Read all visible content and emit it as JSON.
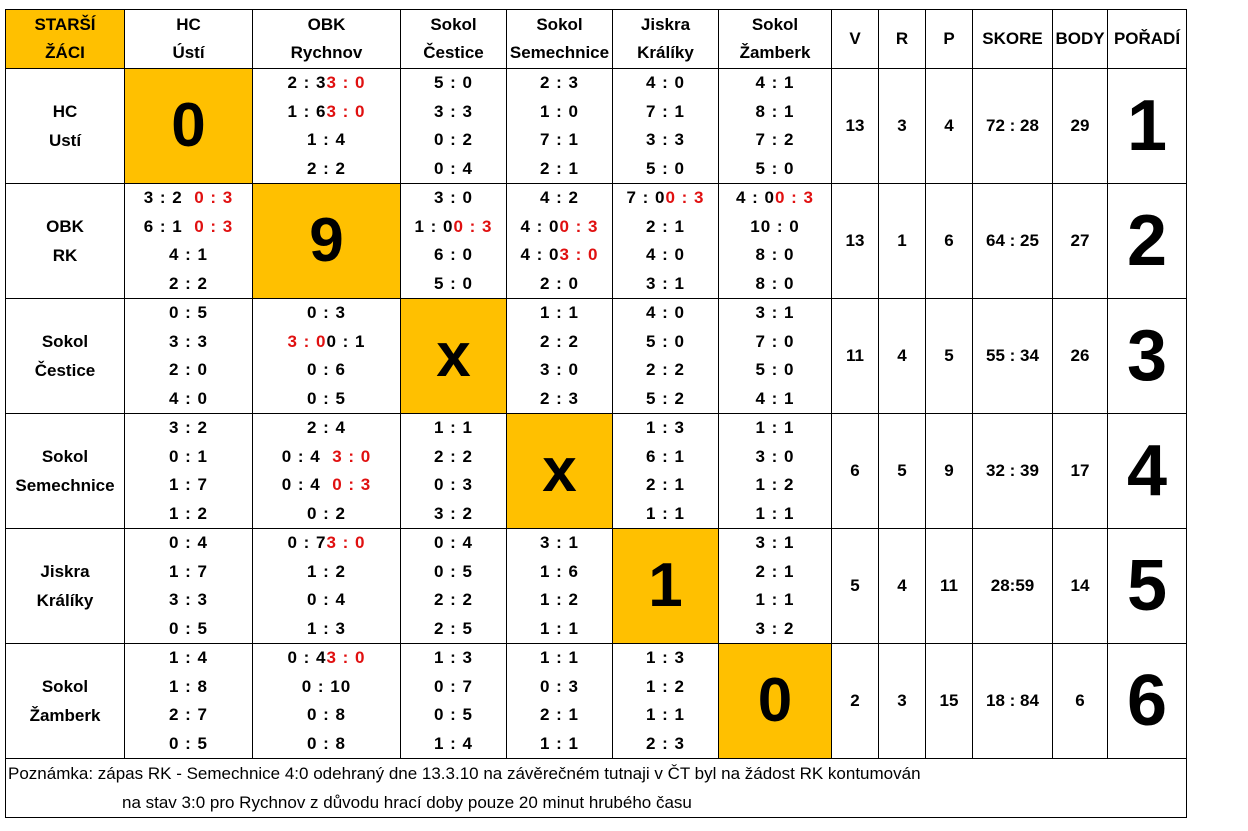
{
  "corner_label": [
    "STARŠÍ",
    "ŽÁCI"
  ],
  "team_headers": [
    [
      "HC",
      "Ústí"
    ],
    [
      "OBK",
      "Rychnov"
    ],
    [
      "Sokol",
      "Čestice"
    ],
    [
      "Sokol",
      "Semechnice"
    ],
    [
      "Jiskra",
      "Králíky"
    ],
    [
      "Sokol",
      "Žamberk"
    ]
  ],
  "stat_headers": [
    "V",
    "R",
    "P",
    "SKORE",
    "BODY",
    "POŘADÍ"
  ],
  "rows": [
    {
      "name": [
        "HC",
        "Ustí"
      ],
      "cells": [
        {
          "diag": "0"
        },
        [
          [
            "2 : 3",
            "3 : 0"
          ],
          [
            "1 : 6",
            "3 : 0"
          ],
          [
            "1 : 4"
          ],
          [
            "2 : 2"
          ]
        ],
        [
          [
            "5 : 0"
          ],
          [
            "3 : 3"
          ],
          [
            "0 : 2"
          ],
          [
            "0 : 4"
          ]
        ],
        [
          [
            "2 : 3"
          ],
          [
            "1 : 0"
          ],
          [
            "7 : 1"
          ],
          [
            "2 : 1"
          ]
        ],
        [
          [
            "4 : 0"
          ],
          [
            "7 : 1"
          ],
          [
            "3 : 3"
          ],
          [
            "5 : 0"
          ]
        ],
        [
          [
            "4 : 1"
          ],
          [
            "8 : 1"
          ],
          [
            "7 : 2"
          ],
          [
            "5 : 0"
          ]
        ]
      ],
      "v": "13",
      "r": "3",
      "p": "4",
      "skore": "72 : 28",
      "body": "29",
      "rank": "1"
    },
    {
      "name": [
        "OBK",
        "RK"
      ],
      "cells": [
        [
          [
            "3 : 2",
            "0 : 3"
          ],
          [
            "6 : 1",
            "0 : 3"
          ],
          [
            "4 : 1"
          ],
          [
            "2 : 2"
          ]
        ],
        {
          "diag": "9"
        },
        [
          [
            "3 : 0"
          ],
          [
            "1 : 0",
            "0 : 3"
          ],
          [
            "6 : 0"
          ],
          [
            "5 : 0"
          ]
        ],
        [
          [
            "4 : 2"
          ],
          [
            "4 : 0",
            "0 : 3"
          ],
          [
            "4 : 0",
            "3 : 0"
          ],
          [
            "2 : 0"
          ]
        ],
        [
          [
            "7 : 0",
            "0 : 3"
          ],
          [
            "2 : 1"
          ],
          [
            "4 : 0"
          ],
          [
            "3 : 1"
          ]
        ],
        [
          [
            "4 : 0",
            "0 : 3"
          ],
          [
            "10 : 0"
          ],
          [
            "8 : 0"
          ],
          [
            "8 : 0"
          ]
        ]
      ],
      "v": "13",
      "r": "1",
      "p": "6",
      "skore": "64 : 25",
      "body": "27",
      "rank": "2"
    },
    {
      "name": [
        "Sokol",
        "Čestice"
      ],
      "cells": [
        [
          [
            "0 : 5"
          ],
          [
            "3 : 3"
          ],
          [
            "2 : 0"
          ],
          [
            "4 : 0"
          ]
        ],
        [
          [
            "0 : 3"
          ],
          [
            "",
            "3 : 0",
            "0 : 1"
          ],
          [
            "0 : 6"
          ],
          [
            "0 : 5"
          ]
        ],
        {
          "diag": "x"
        },
        [
          [
            "1 : 1"
          ],
          [
            "2 : 2"
          ],
          [
            "3 : 0"
          ],
          [
            "2 : 3"
          ]
        ],
        [
          [
            "4 : 0"
          ],
          [
            "5 : 0"
          ],
          [
            "2 : 2"
          ],
          [
            "5 : 2"
          ]
        ],
        [
          [
            "3 : 1"
          ],
          [
            "7 : 0"
          ],
          [
            "5 : 0"
          ],
          [
            "4 : 1"
          ]
        ]
      ],
      "v": "11",
      "r": "4",
      "p": "5",
      "skore": "55 : 34",
      "body": "26",
      "rank": "3"
    },
    {
      "name": [
        "Sokol",
        "Semechnice"
      ],
      "cells": [
        [
          [
            "3 : 2"
          ],
          [
            "0 : 1"
          ],
          [
            "1 : 7"
          ],
          [
            "1 : 2"
          ]
        ],
        [
          [
            "2 : 4"
          ],
          [
            "0 : 4",
            "3 : 0"
          ],
          [
            "0 : 4",
            "0 : 3"
          ],
          [
            "0 : 2"
          ]
        ],
        [
          [
            "1 : 1"
          ],
          [
            "2 : 2"
          ],
          [
            "0 : 3"
          ],
          [
            "3 : 2"
          ]
        ],
        {
          "diag": "x"
        },
        [
          [
            "1 : 3"
          ],
          [
            "6 : 1"
          ],
          [
            "2 : 1"
          ],
          [
            "1 : 1"
          ]
        ],
        [
          [
            "1 : 1"
          ],
          [
            "3 : 0"
          ],
          [
            "1 : 2"
          ],
          [
            "1 : 1"
          ]
        ]
      ],
      "v": "6",
      "r": "5",
      "p": "9",
      "skore": "32 : 39",
      "body": "17",
      "rank": "4"
    },
    {
      "name": [
        "Jiskra",
        "Králíky"
      ],
      "cells": [
        [
          [
            "0 : 4"
          ],
          [
            "1 : 7"
          ],
          [
            "3 : 3"
          ],
          [
            "0 : 5"
          ]
        ],
        [
          [
            "0 : 7",
            "3 : 0"
          ],
          [
            "1 : 2"
          ],
          [
            "0 : 4"
          ],
          [
            "1 : 3"
          ]
        ],
        [
          [
            "0 : 4"
          ],
          [
            "0 : 5"
          ],
          [
            "2 : 2"
          ],
          [
            "2 : 5"
          ]
        ],
        [
          [
            "3 : 1"
          ],
          [
            "1 : 6"
          ],
          [
            "1 : 2"
          ],
          [
            "1 : 1"
          ]
        ],
        {
          "diag": "1"
        },
        [
          [
            "3 : 1"
          ],
          [
            "2 : 1"
          ],
          [
            "1 : 1"
          ],
          [
            "3 : 2"
          ]
        ]
      ],
      "v": "5",
      "r": "4",
      "p": "11",
      "skore": "28:59",
      "body": "14",
      "rank": "5"
    },
    {
      "name": [
        "Sokol",
        "Žamberk"
      ],
      "cells": [
        [
          [
            "1 : 4"
          ],
          [
            "1 : 8"
          ],
          [
            "2 : 7"
          ],
          [
            "0 : 5"
          ]
        ],
        [
          [
            "0 : 4",
            "3 : 0"
          ],
          [
            "0 : 10"
          ],
          [
            "0 : 8"
          ],
          [
            "0 : 8"
          ]
        ],
        [
          [
            "1 : 3"
          ],
          [
            "0 : 7"
          ],
          [
            "0 : 5"
          ],
          [
            "1 : 4"
          ]
        ],
        [
          [
            "1 : 1"
          ],
          [
            "0 : 3"
          ],
          [
            "2 : 1"
          ],
          [
            "1 : 1"
          ]
        ],
        [
          [
            "1 : 3"
          ],
          [
            "1 : 2"
          ],
          [
            "1 : 1"
          ],
          [
            "2 : 3"
          ]
        ],
        {
          "diag": "0"
        }
      ],
      "v": "2",
      "r": "3",
      "p": "15",
      "skore": "18 : 84",
      "body": "6",
      "rank": "6"
    }
  ],
  "note": [
    "Poznámka: zápas RK - Semechnice 4:0 odehraný dne 13.3.10 na závěrečném tutnaji v ČT byl na žádost RK kontumován",
    "na stav 3:0 pro Rychnov z důvodu hrací doby pouze 20 minut hrubého času"
  ]
}
